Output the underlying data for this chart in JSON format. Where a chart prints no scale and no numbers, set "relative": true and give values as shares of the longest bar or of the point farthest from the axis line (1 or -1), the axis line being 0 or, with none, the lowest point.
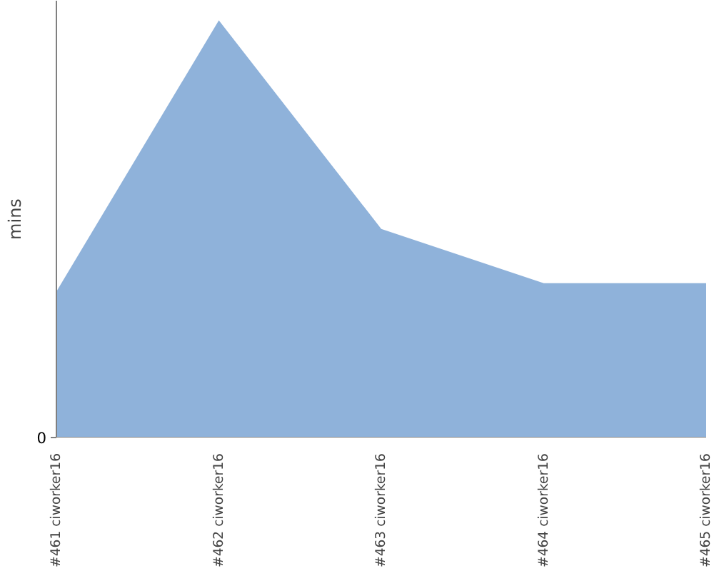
{
  "chart_data": {
    "type": "area",
    "ylabel": "mins",
    "relative": true,
    "annotations": [
      "0"
    ],
    "categories": [
      "#461 ciworker16",
      "#462 ciworker16",
      "#463 ciworker16",
      "#464 ciworker16",
      "#465 ciworker16"
    ],
    "series": [
      {
        "color": "#8fb2da",
        "values": [
          0.35,
          1,
          0.5,
          0.37,
          0.37
        ]
      }
    ],
    "grid": false
  }
}
